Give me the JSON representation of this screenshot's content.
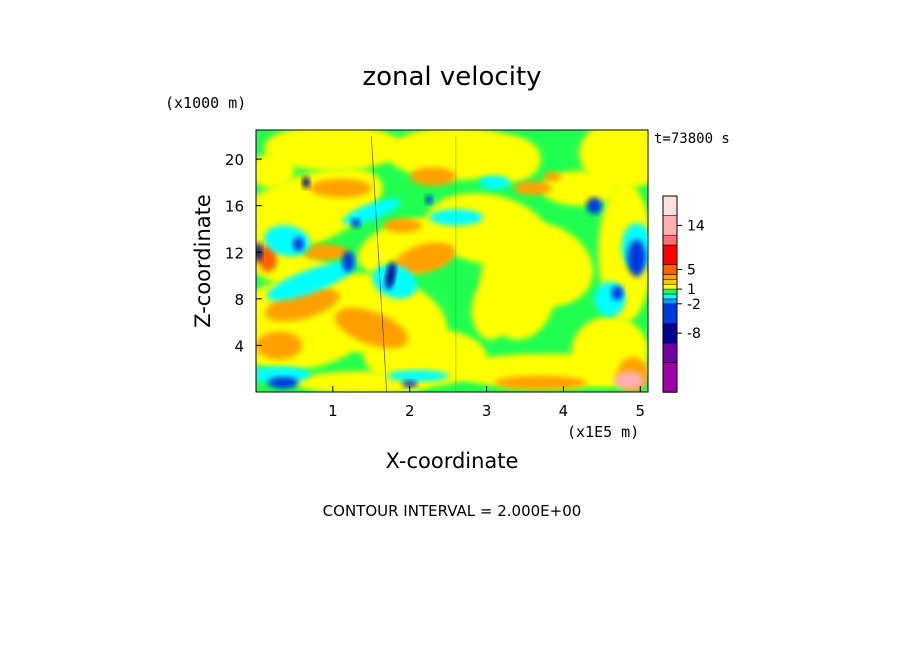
{
  "chart_data": {
    "type": "heatmap",
    "title": "zonal velocity",
    "xlabel": "X-coordinate",
    "ylabel": "Z-coordinate",
    "x_unit": "(x1E5 m)",
    "y_unit": "(x1000 m)",
    "time_label": "t=73800 s",
    "footer": "CONTOUR INTERVAL = 2.000E+00",
    "xlim": [
      0,
      5.1
    ],
    "ylim": [
      0,
      22.5
    ],
    "x_ticks": [
      "1",
      "2",
      "3",
      "4",
      "5"
    ],
    "y_ticks": [
      "4",
      "8",
      "12",
      "16",
      "20"
    ],
    "colorbar": {
      "labels": [
        "14",
        "5",
        "1",
        "-2",
        "-8"
      ],
      "levels": [
        -20,
        -14,
        -10,
        -6,
        -2,
        -1,
        0,
        1,
        2,
        3,
        4,
        6,
        10,
        12,
        16
      ],
      "colors": [
        "#ff10b0",
        "#a000a8",
        "#7000a0",
        "#000090",
        "#0038e0",
        "#00a0ff",
        "#00ffff",
        "#20ff50",
        "#ffff00",
        "#ffcc00",
        "#ffa000",
        "#ff6000",
        "#ff0000",
        "#ff7070",
        "#ffb0b0",
        "#ffe0e0"
      ]
    }
  }
}
